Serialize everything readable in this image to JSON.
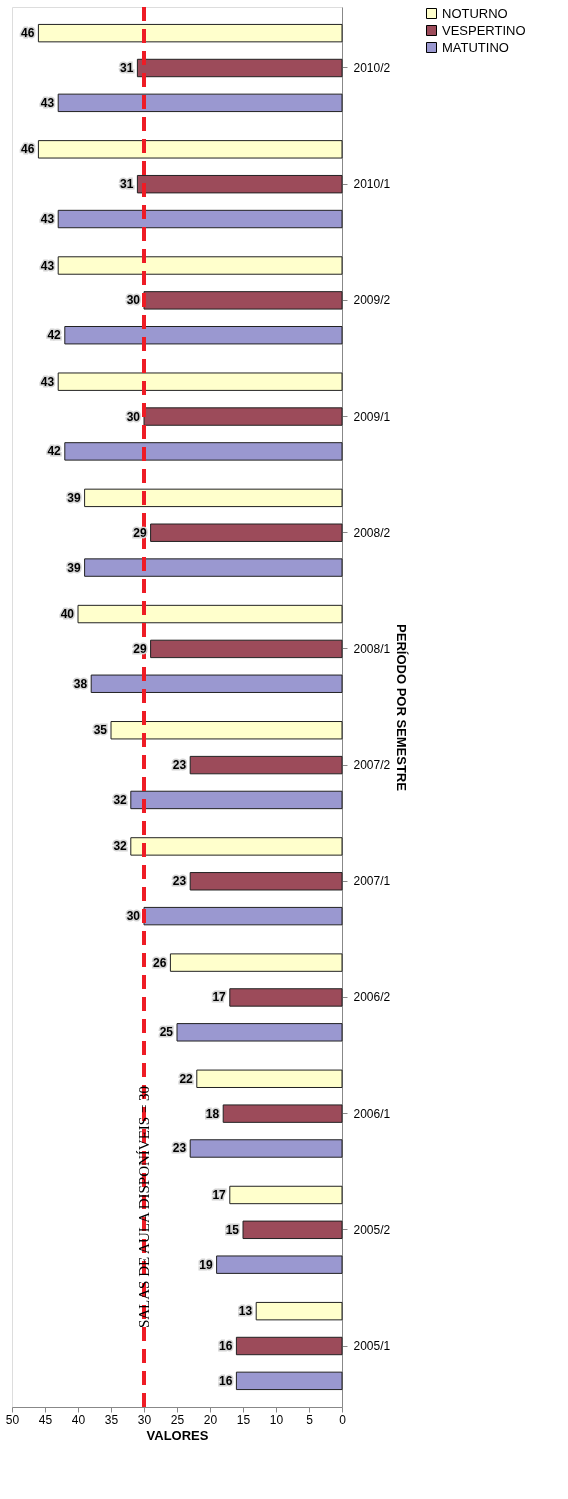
{
  "chart_data": {
    "type": "bar",
    "orientation": "horizontal",
    "xlabel": "VALORES",
    "ylabel": "PERÍODO POR SEMESTRE",
    "categories": [
      "2010/2",
      "2010/1",
      "2009/2",
      "2009/1",
      "2008/2",
      "2008/1",
      "2007/2",
      "2007/1",
      "2006/2",
      "2006/1",
      "2005/2",
      "2005/1"
    ],
    "series": [
      {
        "name": "NOTURNO",
        "color": "#ffffcc",
        "values": [
          46,
          46,
          43,
          43,
          39,
          40,
          35,
          32,
          26,
          22,
          17,
          13
        ]
      },
      {
        "name": "VESPERTINO",
        "color": "#9c4b5a",
        "values": [
          31,
          31,
          30,
          30,
          29,
          29,
          23,
          23,
          17,
          18,
          15,
          16
        ]
      },
      {
        "name": "MATUTINO",
        "color": "#9a98d0",
        "values": [
          43,
          43,
          42,
          42,
          39,
          38,
          32,
          30,
          25,
          23,
          19,
          16
        ]
      }
    ],
    "xlim": [
      50,
      0
    ],
    "xticks": [
      50,
      45,
      40,
      35,
      30,
      25,
      20,
      15,
      10,
      5,
      0
    ],
    "ref_lines": [
      {
        "axis": "x",
        "value": 30,
        "label": "SALAS DE AULA DISPONÍVEIS = 30",
        "color": "#ee1c25",
        "line_style": "dashed"
      }
    ],
    "data_labels": true,
    "legend": "right",
    "grid": false
  }
}
